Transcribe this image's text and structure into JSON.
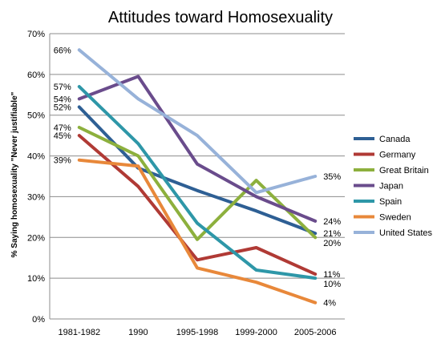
{
  "chart_data": {
    "type": "line",
    "title": "Attitudes toward Homosexuality",
    "ylabel": "% Saying homosexuality \"Never justifiable\"",
    "xlabel": "",
    "categories": [
      "1981-1982",
      "1990",
      "1995-1998",
      "1999-2000",
      "2005-2006"
    ],
    "ylim": [
      0,
      70
    ],
    "yticks": [
      "0%",
      "10%",
      "20%",
      "30%",
      "40%",
      "50%",
      "60%",
      "70%"
    ],
    "grid": true,
    "legend_position": "right",
    "series": [
      {
        "name": "Canada",
        "color": "#2E5F94",
        "values": [
          52,
          37,
          31.5,
          26.5,
          21
        ]
      },
      {
        "name": "Germany",
        "color": "#B03A35",
        "values": [
          45,
          32.5,
          14.5,
          17.5,
          11
        ]
      },
      {
        "name": "Great Britain",
        "color": "#8DB03D",
        "values": [
          47,
          40,
          19.5,
          34,
          20
        ]
      },
      {
        "name": "Japan",
        "color": "#6A4C8C",
        "values": [
          54,
          59.5,
          38,
          30,
          24
        ]
      },
      {
        "name": "Spain",
        "color": "#2E97A8",
        "values": [
          57,
          43,
          23.5,
          12,
          10
        ]
      },
      {
        "name": "Sweden",
        "color": "#E8883A",
        "values": [
          39,
          37.5,
          12.5,
          9,
          4
        ]
      },
      {
        "name": "United States",
        "color": "#97B2D9",
        "values": [
          66,
          54,
          45,
          31,
          35
        ]
      }
    ],
    "start_labels": [
      {
        "text": "66%",
        "value": 66
      },
      {
        "text": "57%",
        "value": 57
      },
      {
        "text": "54%",
        "value": 54
      },
      {
        "text": "52%",
        "value": 52
      },
      {
        "text": "47%",
        "value": 47
      },
      {
        "text": "45%",
        "value": 45
      },
      {
        "text": "39%",
        "value": 39
      }
    ],
    "end_labels": [
      {
        "text": "35%",
        "value": 35
      },
      {
        "text": "24%",
        "value": 24
      },
      {
        "text": "21%",
        "value": 21
      },
      {
        "text": "20%",
        "value": 20
      },
      {
        "text": "11%",
        "value": 11
      },
      {
        "text": "10%",
        "value": 10
      },
      {
        "text": "4%",
        "value": 4
      }
    ]
  }
}
